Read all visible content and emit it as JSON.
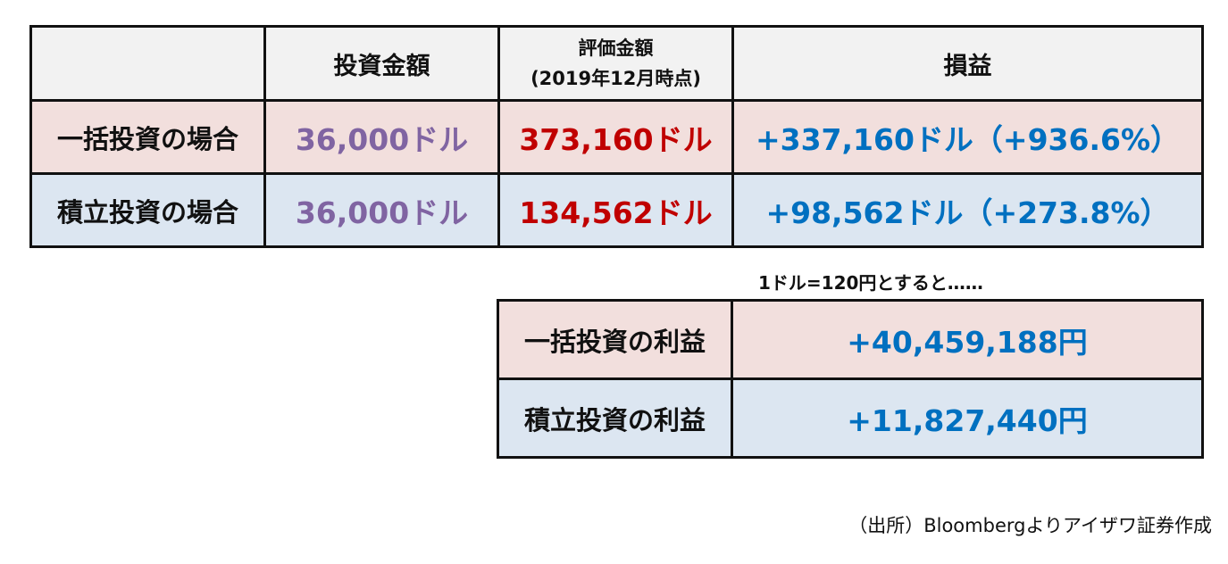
{
  "main_table": {
    "headers": {
      "empty": "",
      "investment": "投資金額",
      "valuation_line1": "評価金額",
      "valuation_line2": "(2019年12月時点)",
      "profit_loss": "損益"
    },
    "rows": [
      {
        "label": "一括投資の場合",
        "investment": "36,000ドル",
        "valuation": "373,160ドル",
        "profit_loss": "+337,160ドル（+936.6%）"
      },
      {
        "label": "積立投資の場合",
        "investment": "36,000ドル",
        "valuation": "134,562ドル",
        "profit_loss": "+98,562ドル（+273.8%）"
      }
    ]
  },
  "note": "1ドル=120円とすると……",
  "yen_table": {
    "rows": [
      {
        "label": "一括投資の利益",
        "value": "+40,459,188円"
      },
      {
        "label": "積立投資の利益",
        "value": "+11,827,440円"
      }
    ]
  },
  "source": "（出所）Bloombergよりアイザワ証券作成",
  "colors": {
    "pink_row": "#f2dfdd",
    "blue_row": "#dce6f1",
    "header_bg": "#f2f2f2",
    "investment_text": "#8064a2",
    "valuation_text": "#c00000",
    "profit_text": "#0070c0"
  }
}
